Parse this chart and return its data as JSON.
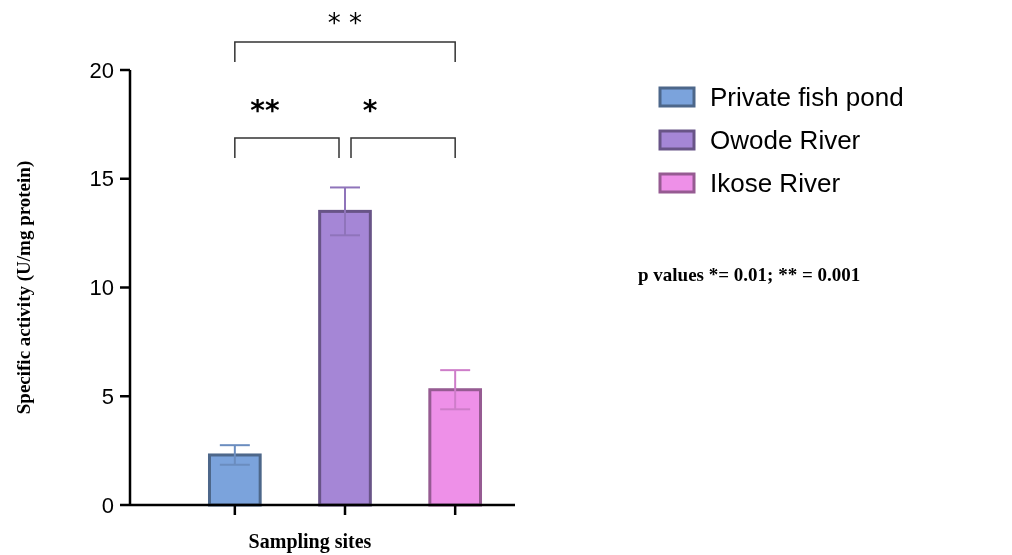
{
  "chart_data": {
    "type": "bar",
    "xlabel": "Sampling sites",
    "ylabel": "Specific activity (U/mg protein)",
    "categories": [
      null,
      null,
      null
    ],
    "series": [
      {
        "name": "Private fish pond",
        "color": "#7ba3dc",
        "values": [
          2.3,
          null,
          null
        ],
        "errors": [
          0.45,
          null,
          null
        ]
      },
      {
        "name": "Owode River",
        "color": "#a586d6",
        "values": [
          null,
          13.5,
          null
        ],
        "errors": [
          null,
          1.1,
          null
        ]
      },
      {
        "name": "Ikose River",
        "color": "#ee90e8",
        "values": [
          null,
          null,
          5.3
        ],
        "errors": [
          null,
          null,
          0.9
        ]
      }
    ],
    "ylim": [
      0,
      20
    ],
    "yticks": [
      0,
      5,
      10,
      15,
      20
    ],
    "legend": "right",
    "annotations": [
      "* *",
      "**",
      "*",
      "p values *= 0.01; ** = 0.001"
    ]
  }
}
